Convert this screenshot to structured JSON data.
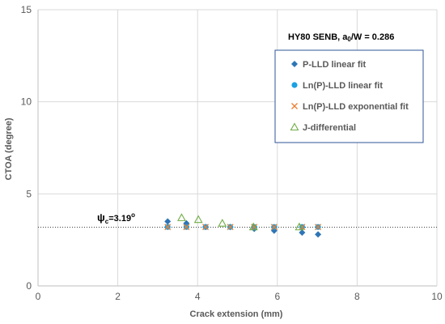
{
  "chart_data": {
    "type": "scatter",
    "title": "",
    "xlabel": "Crack extension (mm)",
    "ylabel": "CTOA (degree)",
    "xlim": [
      0,
      10
    ],
    "ylim": [
      0,
      15
    ],
    "xticks": [
      "0",
      "2",
      "4",
      "6",
      "8",
      "10"
    ],
    "yticks": [
      "0",
      "5",
      "10",
      "15"
    ],
    "grid": true,
    "annotation_top": {
      "prefix": "HY80 SENB, a",
      "sub": "0",
      "suffix": "/W = 0.286"
    },
    "annotation_psi": {
      "symbol": "ψ",
      "sub": "c",
      "value": "=3.19",
      "sup": "o"
    },
    "reference_line": {
      "y": 3.19
    },
    "legend_position": "top-right",
    "series": [
      {
        "name": "P-LLD linear fit",
        "marker": "diamond",
        "color": "#2e75b6",
        "x": [
          3.25,
          3.72,
          4.2,
          4.82,
          5.42,
          5.92,
          6.62,
          7.02
        ],
        "y": [
          3.5,
          3.4,
          3.2,
          3.2,
          3.1,
          3.0,
          2.9,
          2.8
        ]
      },
      {
        "name": "Ln(P)-LLD linear fit",
        "marker": "circle",
        "color": "#1ba1e2",
        "x": [
          3.25,
          3.72,
          4.2,
          4.82,
          5.42,
          5.92,
          6.62,
          7.02
        ],
        "y": [
          3.2,
          3.2,
          3.2,
          3.2,
          3.2,
          3.2,
          3.2,
          3.2
        ]
      },
      {
        "name": "Ln(P)-LLD exponential fit",
        "marker": "cross",
        "color": "#ed7d31",
        "x": [
          3.25,
          3.72,
          4.2,
          4.82,
          5.42,
          5.92,
          6.62,
          7.02
        ],
        "y": [
          3.2,
          3.2,
          3.2,
          3.2,
          3.2,
          3.2,
          3.2,
          3.2
        ]
      },
      {
        "name": "J-differential",
        "marker": "triangle",
        "color": "#70ad47",
        "x": [
          3.6,
          4.02,
          4.62,
          5.4,
          6.55
        ],
        "y": [
          3.7,
          3.6,
          3.4,
          3.2,
          3.2
        ]
      }
    ]
  }
}
